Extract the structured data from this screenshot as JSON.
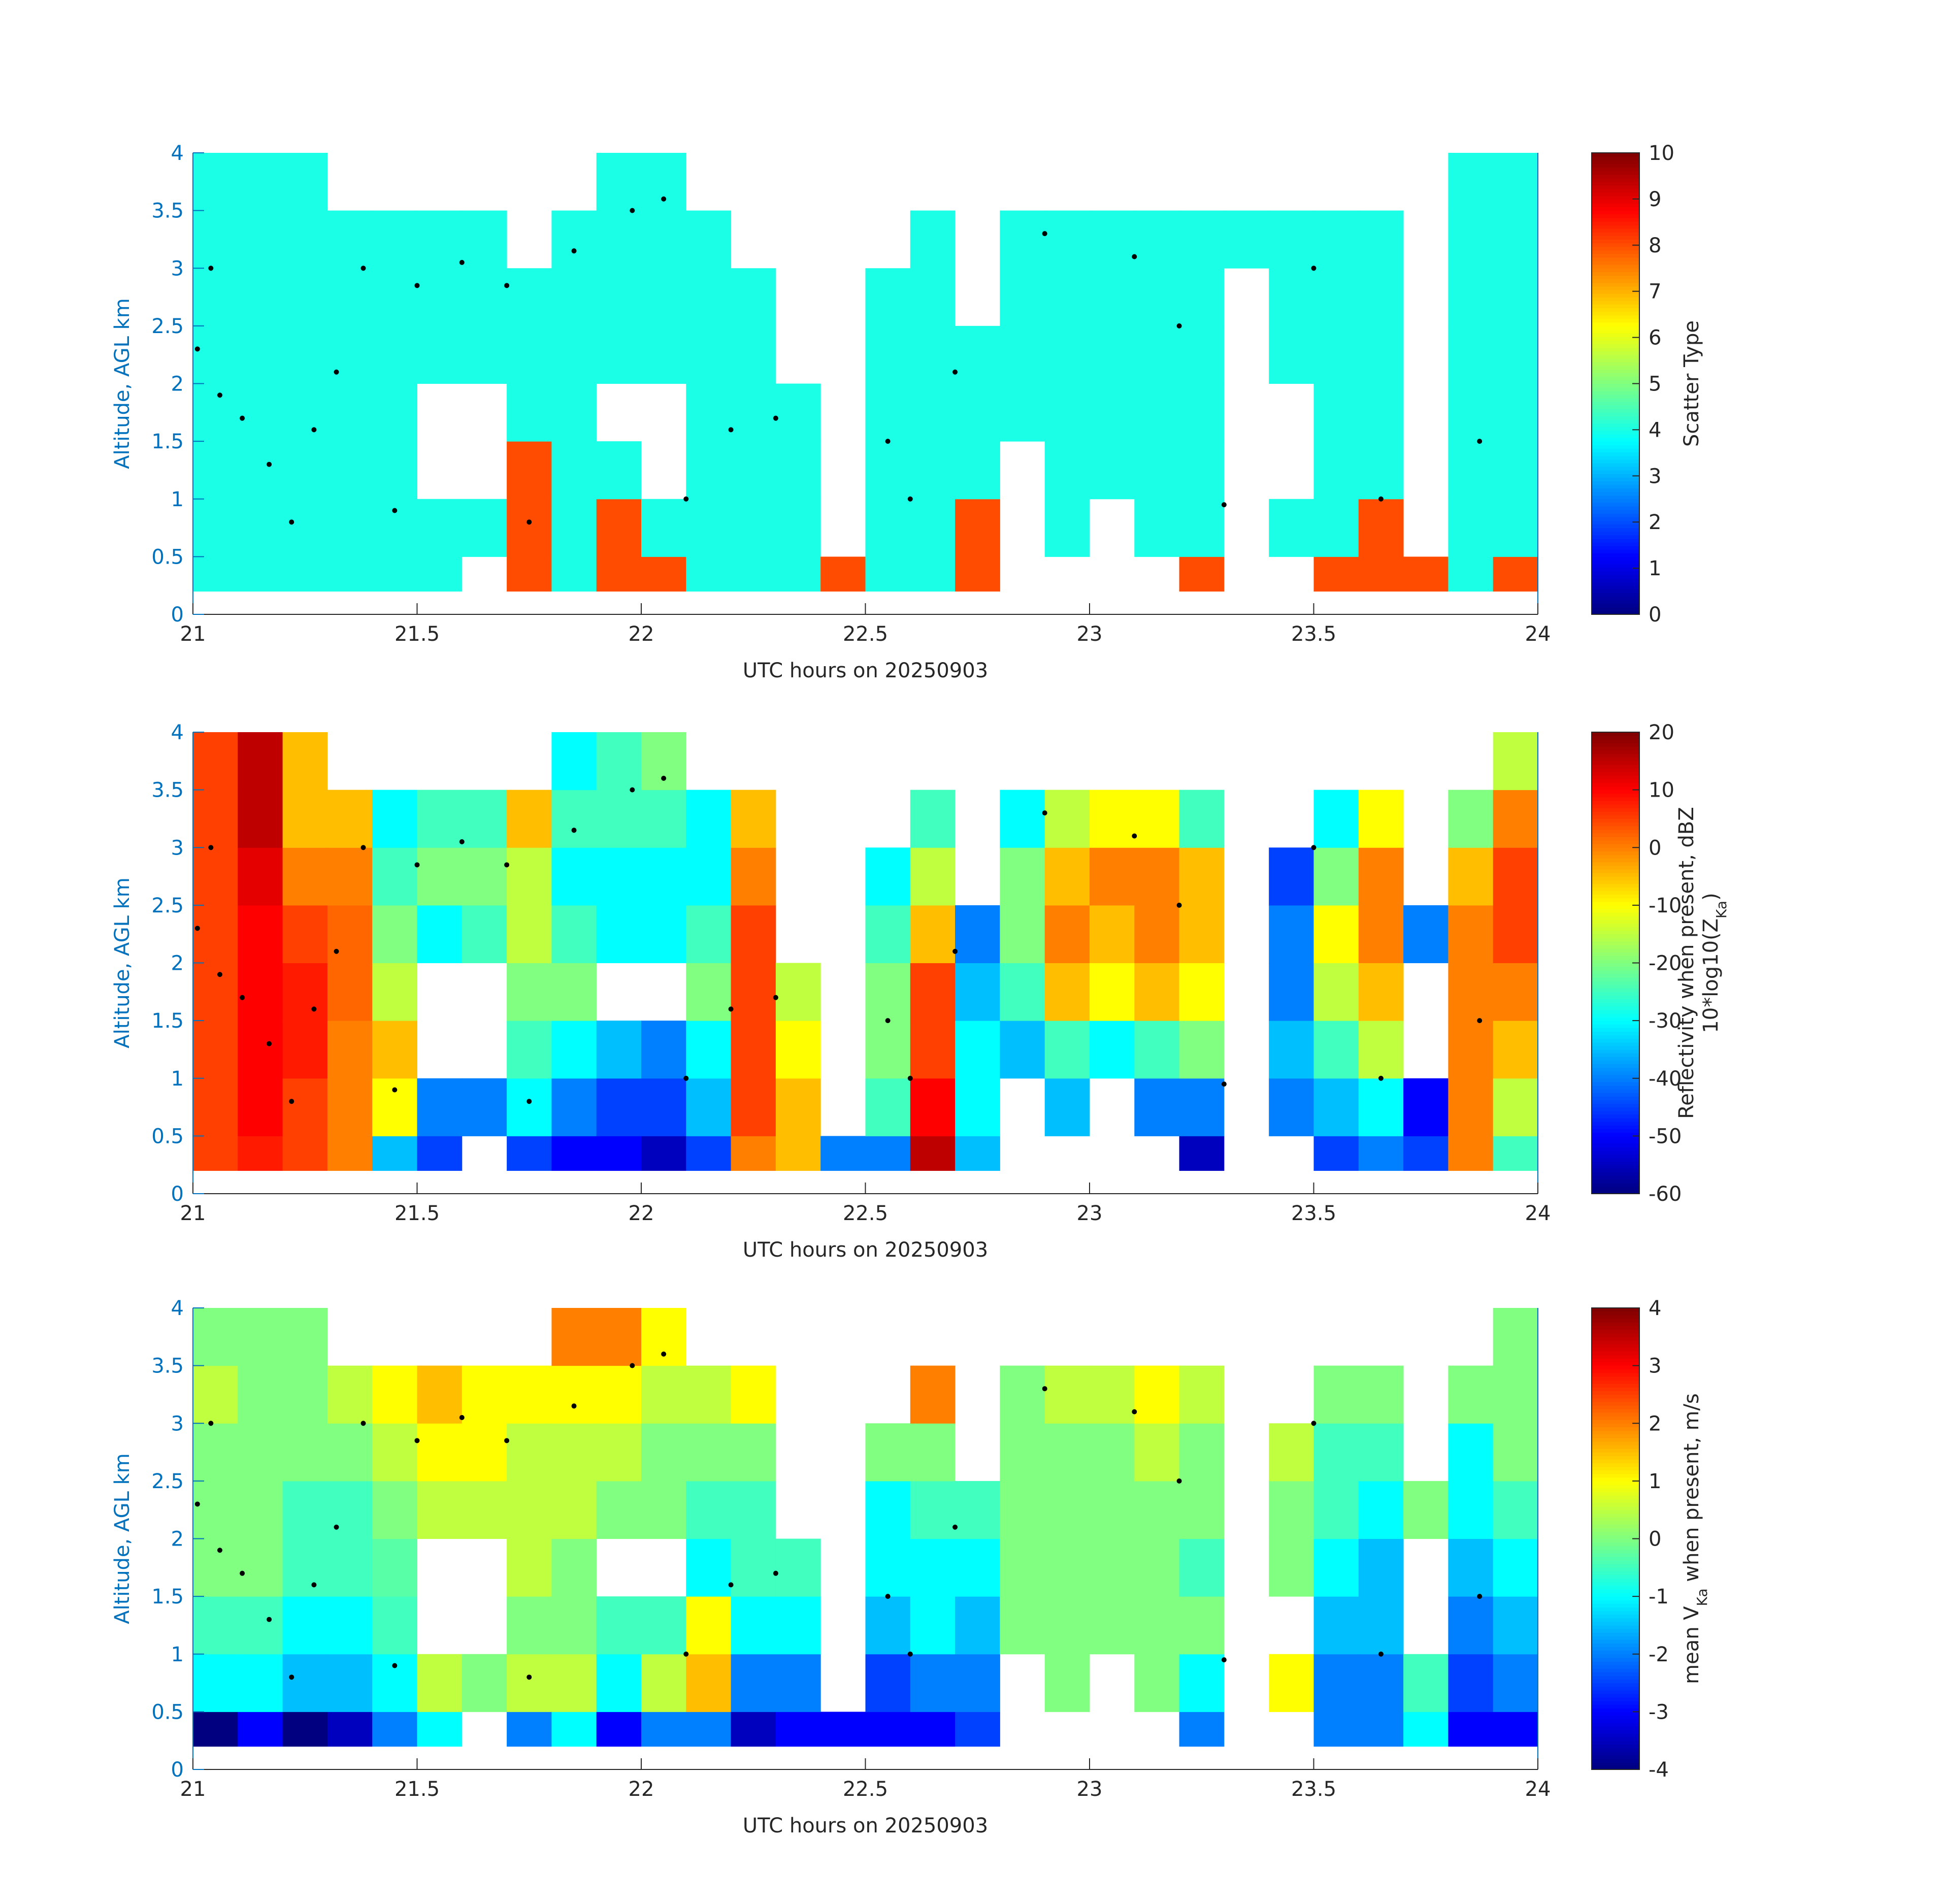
{
  "chart_data": [
    {
      "type": "heatmap",
      "colormap": "jet",
      "xlabel": "UTC hours on 20250903",
      "ylabel": "Altitude, AGL km",
      "xlim": [
        21,
        24
      ],
      "xticks": [
        21,
        21.5,
        22,
        22.5,
        23,
        23.5,
        24
      ],
      "ylim": [
        0,
        4
      ],
      "yticks": [
        0,
        0.5,
        1,
        1.5,
        2,
        2.5,
        3,
        3.5,
        4
      ],
      "xbins": [
        21,
        21.1,
        21.2,
        21.3,
        21.4,
        21.5,
        21.6,
        21.7,
        21.8,
        21.9,
        22,
        22.1,
        22.2,
        22.3,
        22.4,
        22.5,
        22.6,
        22.7,
        22.8,
        22.9,
        23,
        23.1,
        23.2,
        23.3,
        23.4,
        23.5,
        23.6,
        23.7,
        23.8,
        23.9,
        24
      ],
      "ybins": [
        0.2,
        0.5,
        1,
        1.5,
        2,
        2.5,
        3,
        3.5,
        4
      ],
      "values": [
        [
          4,
          4,
          4,
          4,
          4,
          4,
          4,
          4
        ],
        [
          4,
          4,
          4,
          4,
          4,
          4,
          4,
          4
        ],
        [
          4,
          4,
          4,
          4,
          4,
          4,
          4,
          4
        ],
        [
          4,
          4,
          4,
          4,
          4,
          4,
          4,
          null
        ],
        [
          4,
          4,
          4,
          4,
          4,
          4,
          4,
          null
        ],
        [
          4,
          4,
          null,
          null,
          4,
          4,
          4,
          null
        ],
        [
          null,
          4,
          null,
          null,
          4,
          4,
          4,
          null
        ],
        [
          8,
          8,
          8,
          4,
          4,
          4,
          null,
          null
        ],
        [
          4,
          4,
          4,
          4,
          4,
          4,
          4,
          null
        ],
        [
          8,
          8,
          4,
          null,
          4,
          4,
          4,
          4
        ],
        [
          8,
          4,
          null,
          null,
          4,
          4,
          4,
          4
        ],
        [
          4,
          4,
          4,
          4,
          4,
          4,
          4,
          null
        ],
        [
          4,
          4,
          4,
          4,
          4,
          4,
          null,
          null
        ],
        [
          4,
          4,
          4,
          4,
          null,
          null,
          null,
          null
        ],
        [
          8,
          null,
          null,
          null,
          null,
          null,
          null,
          null
        ],
        [
          4,
          4,
          4,
          4,
          4,
          4,
          null,
          null
        ],
        [
          4,
          4,
          4,
          4,
          4,
          4,
          4,
          null
        ],
        [
          8,
          8,
          4,
          4,
          4,
          null,
          null,
          null
        ],
        [
          null,
          null,
          null,
          4,
          4,
          4,
          4,
          null
        ],
        [
          null,
          4,
          4,
          4,
          4,
          4,
          4,
          null
        ],
        [
          null,
          null,
          4,
          4,
          4,
          4,
          4,
          null
        ],
        [
          null,
          4,
          4,
          4,
          4,
          4,
          4,
          null
        ],
        [
          8,
          4,
          4,
          4,
          4,
          4,
          4,
          null
        ],
        [
          null,
          null,
          null,
          null,
          null,
          null,
          4,
          null
        ],
        [
          null,
          4,
          null,
          null,
          4,
          4,
          4,
          null
        ],
        [
          8,
          4,
          4,
          4,
          4,
          4,
          4,
          null
        ],
        [
          8,
          8,
          4,
          4,
          4,
          4,
          4,
          null
        ],
        [
          8,
          null,
          null,
          null,
          null,
          null,
          null,
          null
        ],
        [
          4,
          4,
          4,
          4,
          4,
          4,
          4,
          4
        ],
        [
          8,
          4,
          4,
          4,
          4,
          4,
          4,
          4
        ]
      ],
      "points": {
        "color": "#000000",
        "x": [
          21.01,
          21.04,
          21.06,
          21.11,
          21.17,
          21.22,
          21.27,
          21.32,
          21.38,
          21.45,
          21.5,
          21.6,
          21.7,
          21.75,
          21.85,
          21.98,
          22.05,
          22.1,
          22.2,
          22.3,
          22.55,
          22.6,
          22.7,
          22.9,
          23.1,
          23.2,
          23.3,
          23.5,
          23.65,
          23.87
        ],
        "y": [
          2.3,
          3.0,
          1.9,
          1.7,
          1.3,
          0.8,
          1.6,
          2.1,
          3.0,
          0.9,
          2.85,
          3.05,
          2.85,
          0.8,
          3.15,
          3.5,
          3.6,
          1.0,
          1.6,
          1.7,
          1.5,
          1.0,
          2.1,
          3.3,
          3.1,
          2.5,
          0.95,
          3.0,
          1.0,
          1.5
        ]
      },
      "clim": [
        0,
        10
      ],
      "cticks": [
        0,
        1,
        2,
        3,
        4,
        5,
        6,
        7,
        8,
        9,
        10
      ],
      "colorbar_label": [
        [
          "Scatter Type"
        ]
      ]
    },
    {
      "type": "heatmap",
      "colormap": "jet",
      "xlabel": "UTC hours on 20250903",
      "ylabel": "Altitude, AGL km",
      "xlim": [
        21,
        24
      ],
      "xticks": [
        21,
        21.5,
        22,
        22.5,
        23,
        23.5,
        24
      ],
      "ylim": [
        0,
        4
      ],
      "yticks": [
        0,
        0.5,
        1,
        1.5,
        2,
        2.5,
        3,
        3.5,
        4
      ],
      "xbins": [
        21,
        21.1,
        21.2,
        21.3,
        21.4,
        21.5,
        21.6,
        21.7,
        21.8,
        21.9,
        22,
        22.1,
        22.2,
        22.3,
        22.4,
        22.5,
        22.6,
        22.7,
        22.8,
        22.9,
        23,
        23.1,
        23.2,
        23.3,
        23.4,
        23.5,
        23.6,
        23.7,
        23.8,
        23.9,
        24
      ],
      "ybins": [
        0.2,
        0.5,
        1,
        1.5,
        2,
        2.5,
        3,
        3.5,
        4
      ],
      "values": [
        [
          5,
          5,
          5,
          5,
          5,
          5,
          5,
          5
        ],
        [
          8,
          10,
          10,
          10,
          10,
          12,
          15,
          15
        ],
        [
          5,
          5,
          8,
          8,
          5,
          0,
          -5,
          -5
        ],
        [
          0,
          0,
          0,
          2,
          2,
          0,
          -5,
          null
        ],
        [
          -35,
          -10,
          -5,
          -15,
          -20,
          -25,
          -30,
          null
        ],
        [
          -45,
          -40,
          null,
          null,
          -30,
          -20,
          -25,
          null
        ],
        [
          null,
          -40,
          null,
          null,
          -25,
          -20,
          -25,
          null
        ],
        [
          -45,
          -30,
          -25,
          -20,
          -15,
          -15,
          -5,
          null
        ],
        [
          -50,
          -40,
          -30,
          -20,
          -25,
          -30,
          -25,
          -30
        ],
        [
          -50,
          -45,
          -35,
          null,
          -30,
          -30,
          -25,
          -25
        ],
        [
          -55,
          -45,
          -40,
          null,
          -30,
          -30,
          -25,
          -20
        ],
        [
          -45,
          -35,
          -30,
          -20,
          -25,
          -30,
          -30,
          null
        ],
        [
          0,
          5,
          5,
          5,
          5,
          0,
          -5,
          null
        ],
        [
          -5,
          -5,
          -10,
          -15,
          null,
          null,
          null,
          null
        ],
        [
          -40,
          null,
          null,
          null,
          null,
          null,
          null,
          null
        ],
        [
          -40,
          -25,
          -20,
          -20,
          -25,
          -30,
          null,
          null
        ],
        [
          15,
          10,
          5,
          5,
          -5,
          -15,
          -25,
          null
        ],
        [
          -35,
          -30,
          -30,
          -35,
          -40,
          null,
          null,
          null
        ],
        [
          null,
          null,
          -35,
          -25,
          -20,
          -20,
          -30,
          null
        ],
        [
          null,
          -35,
          -25,
          -5,
          0,
          -5,
          -15,
          null
        ],
        [
          null,
          null,
          -30,
          -10,
          -5,
          0,
          -10,
          null
        ],
        [
          null,
          -40,
          -25,
          -5,
          0,
          0,
          -10,
          null
        ],
        [
          -55,
          -40,
          -20,
          -10,
          -5,
          -5,
          -25,
          null
        ],
        [
          null,
          null,
          null,
          null,
          null,
          null,
          null,
          null
        ],
        [
          null,
          -40,
          -35,
          -40,
          -40,
          -45,
          null,
          null
        ],
        [
          -45,
          -35,
          -25,
          -15,
          -10,
          -20,
          -30,
          null
        ],
        [
          -40,
          -30,
          -15,
          -5,
          0,
          0,
          -10,
          null
        ],
        [
          -45,
          -50,
          null,
          null,
          -40,
          null,
          null,
          null
        ],
        [
          0,
          0,
          0,
          0,
          0,
          -5,
          -20,
          null
        ],
        [
          -25,
          -15,
          -5,
          0,
          5,
          5,
          0,
          -15
        ]
      ],
      "points": {
        "color": "#000000",
        "x": [
          21.01,
          21.04,
          21.06,
          21.11,
          21.17,
          21.22,
          21.27,
          21.32,
          21.38,
          21.45,
          21.5,
          21.6,
          21.7,
          21.75,
          21.85,
          21.98,
          22.05,
          22.1,
          22.2,
          22.3,
          22.55,
          22.6,
          22.7,
          22.9,
          23.1,
          23.2,
          23.3,
          23.5,
          23.65,
          23.87
        ],
        "y": [
          2.3,
          3.0,
          1.9,
          1.7,
          1.3,
          0.8,
          1.6,
          2.1,
          3.0,
          0.9,
          2.85,
          3.05,
          2.85,
          0.8,
          3.15,
          3.5,
          3.6,
          1.0,
          1.6,
          1.7,
          1.5,
          1.0,
          2.1,
          3.3,
          3.1,
          2.5,
          0.95,
          3.0,
          1.0,
          1.5
        ]
      },
      "clim": [
        -60,
        20
      ],
      "cticks": [
        -60,
        -50,
        -40,
        -30,
        -20,
        -10,
        0,
        10,
        20
      ],
      "colorbar_label": [
        [
          "Reflectivity when present, dBZ"
        ],
        [
          "10*log10(Z",
          {
            "sub": "Ka"
          },
          ")"
        ]
      ]
    },
    {
      "type": "heatmap",
      "colormap": "jet",
      "xlabel": "UTC hours on 20250903",
      "ylabel": "Altitude, AGL km",
      "xlim": [
        21,
        24
      ],
      "xticks": [
        21,
        21.5,
        22,
        22.5,
        23,
        23.5,
        24
      ],
      "ylim": [
        0,
        4
      ],
      "yticks": [
        0,
        0.5,
        1,
        1.5,
        2,
        2.5,
        3,
        3.5,
        4
      ],
      "xbins": [
        21,
        21.1,
        21.2,
        21.3,
        21.4,
        21.5,
        21.6,
        21.7,
        21.8,
        21.9,
        22,
        22.1,
        22.2,
        22.3,
        22.4,
        22.5,
        22.6,
        22.7,
        22.8,
        22.9,
        23,
        23.1,
        23.2,
        23.3,
        23.4,
        23.5,
        23.6,
        23.7,
        23.8,
        23.9,
        24
      ],
      "ybins": [
        0.2,
        0.5,
        1,
        1.5,
        2,
        2.5,
        3,
        3.5,
        4
      ],
      "values": [
        [
          -4,
          -1,
          -0.5,
          0,
          0,
          0,
          0.5,
          0
        ],
        [
          -3,
          -1,
          -0.5,
          0,
          0,
          0,
          0,
          0
        ],
        [
          -4,
          -1.5,
          -1,
          -0.5,
          -0.5,
          0,
          0,
          0
        ],
        [
          -3.5,
          -1.5,
          -1,
          -0.5,
          -0.5,
          0,
          0.5,
          null
        ],
        [
          -2,
          -1,
          -0.5,
          -0.3,
          0,
          0.5,
          1,
          null
        ],
        [
          -1,
          0.5,
          null,
          null,
          0.5,
          1,
          1.5,
          null
        ],
        [
          null,
          0,
          null,
          null,
          0.5,
          1,
          1,
          null
        ],
        [
          -2,
          0.5,
          0,
          0.5,
          0.5,
          0.5,
          1,
          null
        ],
        [
          -1,
          0.5,
          0,
          0,
          0.5,
          0.5,
          1,
          2
        ],
        [
          -3,
          -1,
          -0.5,
          null,
          0,
          0.5,
          1,
          2
        ],
        [
          -2,
          0.5,
          -0.5,
          null,
          0,
          0,
          0.5,
          1
        ],
        [
          -2,
          1.5,
          1,
          -1,
          -0.5,
          0,
          0.5,
          null
        ],
        [
          -3.5,
          -2,
          -1,
          -0.5,
          -0.5,
          0,
          1,
          null
        ],
        [
          -3,
          -2,
          -1,
          -0.5,
          null,
          null,
          null,
          null
        ],
        [
          -3,
          null,
          null,
          null,
          null,
          null,
          null,
          null
        ],
        [
          -3,
          -2.5,
          -1.5,
          -1,
          -1,
          0,
          null,
          null
        ],
        [
          -3,
          -2,
          -1,
          -1,
          -0.5,
          0,
          2,
          null
        ],
        [
          -2.5,
          -2,
          -1.5,
          -1,
          -0.5,
          null,
          null,
          null
        ],
        [
          null,
          null,
          0,
          0,
          0,
          0,
          0,
          null
        ],
        [
          null,
          0,
          0,
          0,
          0,
          0,
          0.5,
          null
        ],
        [
          null,
          null,
          0,
          0,
          0,
          0,
          0.5,
          null
        ],
        [
          null,
          0,
          0,
          0,
          0,
          0.5,
          1,
          null
        ],
        [
          -2,
          -1,
          0,
          -0.5,
          0,
          0,
          0.5,
          null
        ],
        [
          null,
          null,
          null,
          null,
          null,
          null,
          null,
          null
        ],
        [
          null,
          1,
          null,
          0,
          0,
          0.5,
          null,
          null
        ],
        [
          -2,
          -2,
          -1.5,
          -1,
          -0.5,
          -0.5,
          0,
          null
        ],
        [
          -2,
          -2,
          -1.5,
          -1.5,
          -1,
          -0.5,
          0,
          null
        ],
        [
          -1,
          -0.5,
          null,
          null,
          0,
          null,
          null,
          null
        ],
        [
          -3,
          -2.5,
          -2,
          -1.5,
          -1,
          -1,
          0,
          null
        ],
        [
          -3,
          -2,
          -1.5,
          -1,
          -0.5,
          0,
          0,
          0
        ]
      ],
      "points": {
        "color": "#000000",
        "x": [
          21.01,
          21.04,
          21.06,
          21.11,
          21.17,
          21.22,
          21.27,
          21.32,
          21.38,
          21.45,
          21.5,
          21.6,
          21.7,
          21.75,
          21.85,
          21.98,
          22.05,
          22.1,
          22.2,
          22.3,
          22.55,
          22.6,
          22.7,
          22.9,
          23.1,
          23.2,
          23.3,
          23.5,
          23.65,
          23.87
        ],
        "y": [
          2.3,
          3.0,
          1.9,
          1.7,
          1.3,
          0.8,
          1.6,
          2.1,
          3.0,
          0.9,
          2.85,
          3.05,
          2.85,
          0.8,
          3.15,
          3.5,
          3.6,
          1.0,
          1.6,
          1.7,
          1.5,
          1.0,
          2.1,
          3.3,
          3.1,
          2.5,
          0.95,
          3.0,
          1.0,
          1.5
        ]
      },
      "clim": [
        -4,
        4
      ],
      "cticks": [
        -4,
        -3,
        -2,
        -1,
        0,
        1,
        2,
        3,
        4
      ],
      "colorbar_label": [
        [
          "mean V",
          {
            "sub": "Ka"
          },
          " when present, m/s"
        ]
      ]
    }
  ]
}
